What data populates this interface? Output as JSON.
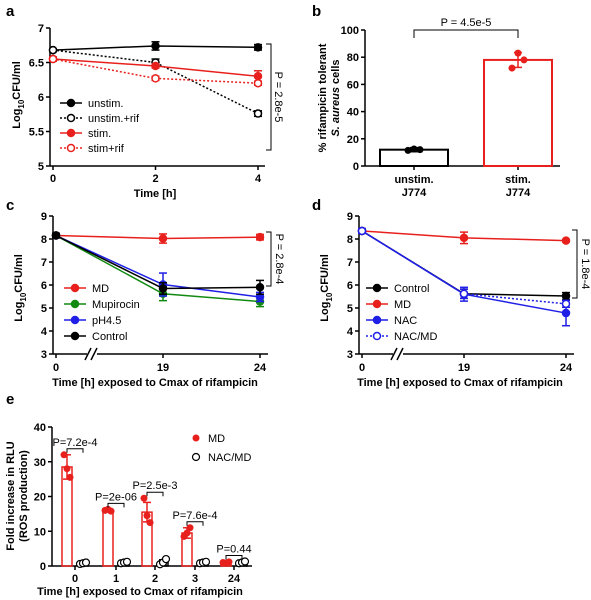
{
  "panels": {
    "a": {
      "letter": "a",
      "ylabel_main": "Log",
      "ylabel_sub": "10",
      "ylabel_tail": "CFU/ml",
      "xlabel": "Time [h]",
      "pvalue": "P = 2.8e-5",
      "x_ticks": [
        0,
        2,
        4
      ],
      "y_ticks": [
        5,
        5.5,
        6,
        6.5,
        7
      ],
      "xlim": [
        0,
        4.2
      ],
      "ylim": [
        5,
        7
      ],
      "legend": [
        "unstim.",
        "unstim.+rif",
        "stim.",
        "stim+rif"
      ],
      "series": [
        {
          "name": "unstim.",
          "x": [
            0,
            2,
            4
          ],
          "y": [
            6.68,
            6.74,
            6.72
          ],
          "err": [
            0.02,
            0.06,
            0.04
          ],
          "color": "#000000",
          "dashed": false,
          "open": false
        },
        {
          "name": "unstim.+rif",
          "x": [
            0,
            2,
            4
          ],
          "y": [
            6.68,
            6.5,
            5.76
          ],
          "err": [
            0.02,
            0.05,
            0.04
          ],
          "color": "#000000",
          "dashed": true,
          "open": true
        },
        {
          "name": "stim.",
          "x": [
            0,
            2,
            4
          ],
          "y": [
            6.55,
            6.45,
            6.3
          ],
          "err": [
            0.03,
            0.03,
            0.08
          ],
          "color": "#e8201d",
          "dashed": false,
          "open": false
        },
        {
          "name": "stim+rif",
          "x": [
            0,
            2,
            4
          ],
          "y": [
            6.55,
            6.27,
            6.2
          ],
          "err": [
            0.03,
            0.03,
            0.03
          ],
          "color": "#e8201d",
          "dashed": true,
          "open": true
        }
      ]
    },
    "b": {
      "letter": "b",
      "ylabel_line1": "% rifampicin tolerant",
      "ylabel_italic": "S. aureus",
      "ylabel_tail": " cells",
      "pvalue": "P = 4.5e-5",
      "y_ticks": [
        0,
        20,
        40,
        60,
        80,
        100
      ],
      "ylim": [
        0,
        100
      ],
      "categories": [
        [
          "unstim.",
          "J774"
        ],
        [
          "stim.",
          "J774"
        ]
      ],
      "values": [
        12,
        78
      ],
      "err": [
        1.5,
        5.5
      ],
      "points": [
        [
          11.5,
          12.5,
          12
        ],
        [
          72,
          83,
          78
        ]
      ],
      "colors": [
        "#000000",
        "#e8201d"
      ]
    },
    "c": {
      "letter": "c",
      "ylabel_main": "Log",
      "ylabel_sub": "10",
      "ylabel_tail": "CFU/ml",
      "xlabel": "Time [h] exposed to Cmax of rifampicin",
      "pvalue": "P = 2.8e-4",
      "x_tick_labels": [
        "0",
        "19",
        "24"
      ],
      "y_ticks": [
        3,
        4,
        5,
        6,
        7,
        8,
        9
      ],
      "ylim": [
        3,
        9
      ],
      "legend": [
        "MD",
        "Mupirocin",
        "pH4.5",
        "Control"
      ],
      "series": [
        {
          "name": "MD",
          "y": [
            8.15,
            8.02,
            8.08
          ],
          "err": [
            0.1,
            0.2,
            0.12
          ],
          "color": "#e8201d",
          "dashed": false,
          "open": false
        },
        {
          "name": "Mupirocin",
          "y": [
            8.15,
            5.62,
            5.28
          ],
          "err": [
            0.1,
            0.3,
            0.22
          ],
          "color": "#128a12",
          "dashed": false,
          "open": false
        },
        {
          "name": "pH4.5",
          "y": [
            8.15,
            6.02,
            5.48
          ],
          "err": [
            0.1,
            0.5,
            0.2
          ],
          "color": "#1f1fe6",
          "dashed": false,
          "open": false
        },
        {
          "name": "Control",
          "y": [
            8.15,
            5.85,
            5.9
          ],
          "err": [
            0.1,
            0.25,
            0.3
          ],
          "color": "#000000",
          "dashed": false,
          "open": false
        }
      ]
    },
    "d": {
      "letter": "d",
      "ylabel_main": "Log",
      "ylabel_sub": "10",
      "ylabel_tail": "CFU/ml",
      "xlabel": "Time [h] exposed to Cmax of rifampicin",
      "pvalue": "P = 1.8e-4",
      "x_tick_labels": [
        "0",
        "19",
        "24"
      ],
      "y_ticks": [
        3,
        4,
        5,
        6,
        7,
        8,
        9
      ],
      "ylim": [
        3,
        9
      ],
      "legend": [
        "Control",
        "MD",
        "NAC",
        "NAC/MD"
      ],
      "series": [
        {
          "name": "Control",
          "y": [
            8.35,
            5.62,
            5.52
          ],
          "err": [
            0.1,
            0.2,
            0.15
          ],
          "color": "#000000",
          "dashed": false,
          "open": false
        },
        {
          "name": "MD",
          "y": [
            8.35,
            8.05,
            7.93
          ],
          "err": [
            0.1,
            0.25,
            0.05
          ],
          "color": "#e8201d",
          "dashed": false,
          "open": false
        },
        {
          "name": "NAC",
          "y": [
            8.35,
            5.6,
            4.78
          ],
          "err": [
            0.1,
            0.3,
            0.55
          ],
          "color": "#1f1fe6",
          "dashed": false,
          "open": false
        },
        {
          "name": "NAC/MD",
          "y": [
            8.35,
            5.62,
            5.18
          ],
          "err": [
            0.1,
            0.2,
            0.15
          ],
          "color": "#1f1fe6",
          "dashed": true,
          "open": true
        }
      ]
    },
    "e": {
      "letter": "e",
      "ylabel_line1": "Fold increase in RLU",
      "ylabel_line2": "(ROS production)",
      "xlabel": "Time [h] exposed to Cmax of rifampicin",
      "y_ticks": [
        0,
        10,
        20,
        30,
        40
      ],
      "ylim": [
        0,
        40
      ],
      "categories": [
        "0",
        "1",
        "2",
        "3",
        "24"
      ],
      "legend": [
        "MD",
        "NAC/MD"
      ],
      "md_values": [
        28.5,
        16,
        15.5,
        9.5,
        1.0
      ],
      "md_err": [
        3.5,
        0.3,
        2.8,
        1.5,
        0.3
      ],
      "md_points": [
        [
          32,
          28,
          25.5
        ],
        [
          16,
          16.3,
          15.8
        ],
        [
          19.5,
          14.5,
          12.5
        ],
        [
          8.5,
          9.5,
          11
        ],
        [
          1,
          0.8,
          1.2
        ]
      ],
      "nac_values": [
        0.8,
        1.0,
        1.0,
        1.0,
        1.0
      ],
      "nac_err": [
        0.2,
        0.3,
        0.8,
        0.3,
        0.3
      ],
      "nac_points": [
        [
          0.6,
          0.8,
          1.0
        ],
        [
          0.8,
          1.0,
          1.2
        ],
        [
          0.5,
          1.0,
          2.0
        ],
        [
          0.8,
          1.0,
          1.2
        ],
        [
          0.8,
          1.0,
          1.3
        ]
      ],
      "pvalues": [
        "P=7.2e-4",
        "P=2e-06",
        "P=2.5e-3",
        "P=7.6e-4",
        "P=0.44"
      ]
    }
  },
  "chart_data": [
    {
      "type": "line",
      "x": [
        0,
        2,
        4
      ],
      "xlabel": "Time [h]",
      "ylabel": "Log10CFU/ml",
      "ylim": [
        5,
        7
      ],
      "series": [
        {
          "name": "unstim.",
          "values": [
            6.68,
            6.74,
            6.72
          ]
        },
        {
          "name": "unstim.+rif",
          "values": [
            6.68,
            6.5,
            5.76
          ]
        },
        {
          "name": "stim.",
          "values": [
            6.55,
            6.45,
            6.3
          ]
        },
        {
          "name": "stim+rif",
          "values": [
            6.55,
            6.27,
            6.2
          ]
        }
      ],
      "annotations": [
        "P = 2.8e-5"
      ],
      "legend": "bottom-left"
    },
    {
      "type": "bar",
      "categories": [
        "unstim. J774",
        "stim. J774"
      ],
      "values": [
        12,
        78
      ],
      "ylabel": "% rifampicin tolerant S. aureus cells",
      "ylim": [
        0,
        100
      ],
      "annotations": [
        "P = 4.5e-5"
      ]
    },
    {
      "type": "line",
      "x": [
        "0",
        "19",
        "24"
      ],
      "xlabel": "Time [h] exposed to Cmax of rifampicin",
      "ylabel": "Log10CFU/ml",
      "ylim": [
        3,
        9
      ],
      "series": [
        {
          "name": "MD",
          "values": [
            8.15,
            8.02,
            8.08
          ]
        },
        {
          "name": "Mupirocin",
          "values": [
            8.15,
            5.62,
            5.28
          ]
        },
        {
          "name": "pH4.5",
          "values": [
            8.15,
            6.02,
            5.48
          ]
        },
        {
          "name": "Control",
          "values": [
            8.15,
            5.85,
            5.9
          ]
        }
      ],
      "annotations": [
        "P = 2.8e-4"
      ],
      "legend": "bottom-left"
    },
    {
      "type": "line",
      "x": [
        "0",
        "19",
        "24"
      ],
      "xlabel": "Time [h] exposed to Cmax of rifampicin",
      "ylabel": "Log10CFU/ml",
      "ylim": [
        3,
        9
      ],
      "series": [
        {
          "name": "Control",
          "values": [
            8.35,
            5.62,
            5.52
          ]
        },
        {
          "name": "MD",
          "values": [
            8.35,
            8.05,
            7.93
          ]
        },
        {
          "name": "NAC",
          "values": [
            8.35,
            5.6,
            4.78
          ]
        },
        {
          "name": "NAC/MD",
          "values": [
            8.35,
            5.62,
            5.18
          ]
        }
      ],
      "annotations": [
        "P = 1.8e-4"
      ],
      "legend": "bottom-left"
    },
    {
      "type": "bar",
      "categories": [
        "0",
        "1",
        "2",
        "3",
        "24"
      ],
      "xlabel": "Time [h] exposed to Cmax of rifampicin",
      "ylabel": "Fold increase in RLU (ROS production)",
      "ylim": [
        0,
        40
      ],
      "series": [
        {
          "name": "MD",
          "values": [
            28.5,
            16,
            15.5,
            9.5,
            1.0
          ]
        },
        {
          "name": "NAC/MD",
          "values": [
            0.8,
            1.0,
            1.0,
            1.0,
            1.0
          ]
        }
      ],
      "annotations": [
        "P=7.2e-4",
        "P=2e-06",
        "P=2.5e-3",
        "P=7.6e-4",
        "P=0.44"
      ],
      "legend": "top-right"
    }
  ]
}
